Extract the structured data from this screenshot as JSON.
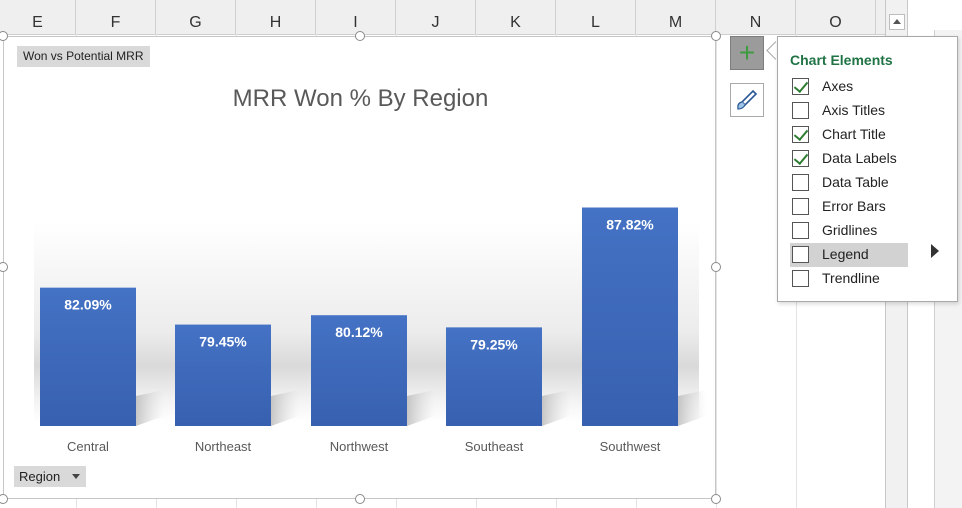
{
  "columns": [
    "E",
    "F",
    "G",
    "H",
    "I",
    "J",
    "K",
    "L",
    "M",
    "N",
    "O"
  ],
  "chart": {
    "field_button": "Won vs Potential  MRR",
    "title": "MRR Won % By Region",
    "axis_button": "Region",
    "bar_color": "#4472c4"
  },
  "chart_data": {
    "type": "bar",
    "title": "MRR Won % By Region",
    "categories": [
      "Central",
      "Northeast",
      "Northwest",
      "Southeast",
      "Southwest"
    ],
    "values": [
      82.09,
      79.45,
      80.12,
      79.25,
      87.82
    ],
    "labels": [
      "82.09%",
      "79.45%",
      "80.12%",
      "79.25%",
      "87.82%"
    ],
    "ylim": [
      72.2,
      90
    ],
    "grid": false,
    "legend": "none"
  },
  "flyout": {
    "title": "Chart Elements",
    "items": [
      {
        "label": "Axes",
        "checked": true
      },
      {
        "label": "Axis Titles",
        "checked": false
      },
      {
        "label": "Chart Title",
        "checked": true
      },
      {
        "label": "Data Labels",
        "checked": true
      },
      {
        "label": "Data Table",
        "checked": false
      },
      {
        "label": "Error Bars",
        "checked": false
      },
      {
        "label": "Gridlines",
        "checked": false
      },
      {
        "label": "Legend",
        "checked": false,
        "highlighted": true
      },
      {
        "label": "Trendline",
        "checked": false
      }
    ]
  },
  "side_buttons": {
    "plus": "+"
  },
  "icons": {
    "add": "plus-icon",
    "style": "brush-icon",
    "submenu": "chevron-right-icon"
  }
}
